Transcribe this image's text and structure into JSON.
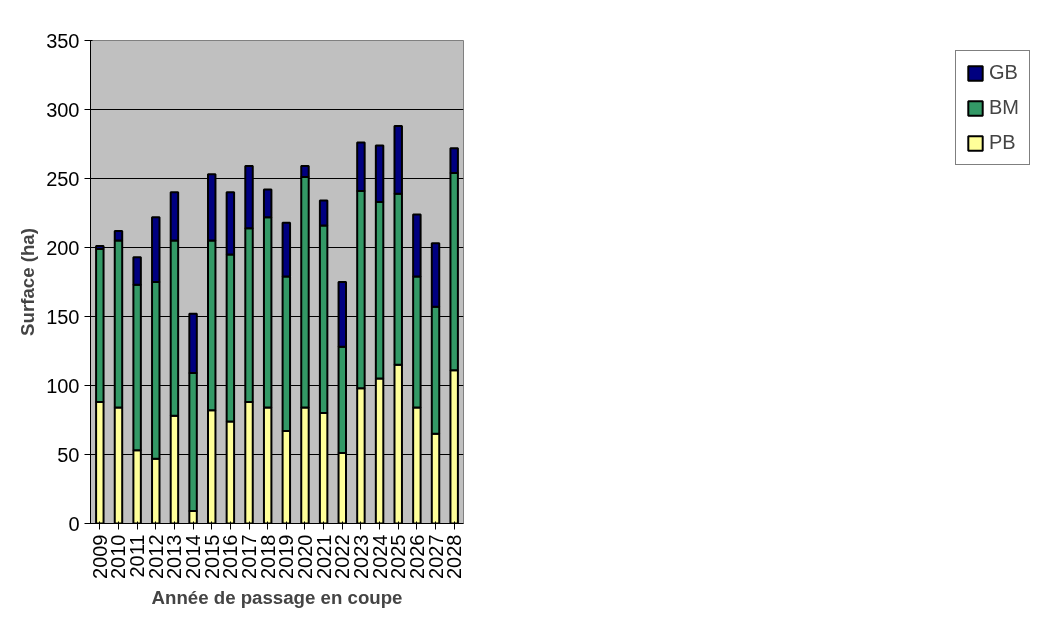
{
  "chart_data": {
    "type": "bar",
    "stacked": true,
    "xlabel": "Année de passage en coupe",
    "ylabel": "Surface (ha)",
    "categories": [
      "2009",
      "2010",
      "2011",
      "2012",
      "2013",
      "2014",
      "2015",
      "2016",
      "2017",
      "2018",
      "2019",
      "2020",
      "2021",
      "2022",
      "2023",
      "2024",
      "2025",
      "2026",
      "2027",
      "2028"
    ],
    "series": [
      {
        "name": "PB",
        "color": "#ffff99",
        "values": [
          88,
          84,
          53,
          47,
          78,
          9,
          82,
          74,
          88,
          84,
          67,
          84,
          80,
          51,
          98,
          105,
          115,
          84,
          65,
          111
        ]
      },
      {
        "name": "BM",
        "color": "#339966",
        "values": [
          111,
          121,
          120,
          128,
          127,
          100,
          123,
          121,
          126,
          138,
          112,
          167,
          136,
          77,
          143,
          128,
          124,
          95,
          92,
          143
        ]
      },
      {
        "name": "GB",
        "color": "#000080",
        "values": [
          2,
          7,
          20,
          47,
          35,
          43,
          48,
          45,
          45,
          20,
          39,
          8,
          18,
          47,
          35,
          41,
          49,
          45,
          46,
          18
        ]
      }
    ],
    "ylim": [
      0,
      350
    ],
    "yticks": [
      0,
      50,
      100,
      150,
      200,
      250,
      300,
      350
    ],
    "grid": "y",
    "legend": "right"
  }
}
